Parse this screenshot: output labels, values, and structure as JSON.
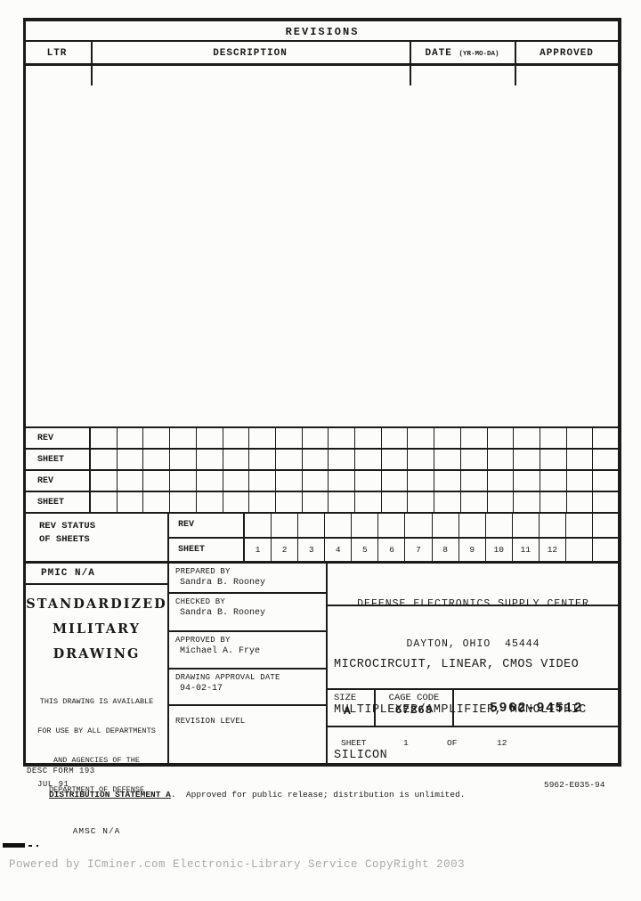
{
  "revisions": {
    "title": "REVISIONS",
    "col_ltr": "LTR",
    "col_description": "DESCRIPTION",
    "col_date": "DATE ",
    "col_date_note": "(YR-MO-DA)",
    "col_approved": "APPROVED"
  },
  "rev_sheet_grid": {
    "row_labels": [
      "REV",
      "SHEET",
      "REV",
      "SHEET"
    ],
    "column_count": 20
  },
  "rev_status": {
    "label_line1": "REV STATUS",
    "label_line2": "OF SHEETS",
    "rev_label": "REV",
    "sheet_label": "SHEET",
    "sheet_numbers": [
      "1",
      "2",
      "3",
      "4",
      "5",
      "6",
      "7",
      "8",
      "9",
      "10",
      "11",
      "12",
      "",
      ""
    ]
  },
  "info": {
    "pmic": "PMIC N/A",
    "smd_lines": [
      "STANDARDIZED",
      "MILITARY",
      "DRAWING"
    ],
    "availability": [
      "THIS DRAWING IS AVAILABLE",
      "FOR USE BY ALL DEPARTMENTS",
      "AND AGENCIES OF THE",
      "DEPARTMENT OF DEFENSE"
    ],
    "amsc": "AMSC N/A"
  },
  "approvals": {
    "prepared_label": "PREPARED BY",
    "prepared_name": "Sandra B. Rooney",
    "checked_label": "CHECKED BY",
    "checked_name": "Sandra B. Rooney",
    "approved_label": "APPROVED BY",
    "approved_name": "Michael A. Frye",
    "date_label": "DRAWING APPROVAL DATE",
    "date_value": "94-02-17",
    "revision_label": "REVISION LEVEL"
  },
  "title_block": {
    "agency_line1": "DEFENSE ELECTRONICS SUPPLY CENTER",
    "agency_line2": "DAYTON, OHIO  45444",
    "title_lines": [
      "MICROCIRCUIT, LINEAR, CMOS VIDEO",
      "MULTIPLEXER/AMPLIFIER, MONOLITHIC",
      "SILICON"
    ],
    "size_label": "SIZE",
    "size_value": "A",
    "cage_label": "CAGE CODE",
    "cage_value": "67268",
    "drawing_number": "5962-94512",
    "sheet_label": "SHEET",
    "sheet_value": "1",
    "of_label": "OF",
    "total_value": "12"
  },
  "footer": {
    "form": "DESC FORM 193",
    "form_date": "JUL 91",
    "distribution_bold": "DISTRIBUTION STATEMENT A",
    "distribution_rest": ".  Approved for public release; distribution is unlimited.",
    "doc_number": "5962-E035-94"
  },
  "watermark": "Powered by ICminer.com Electronic-Library Service CopyRight 2003"
}
